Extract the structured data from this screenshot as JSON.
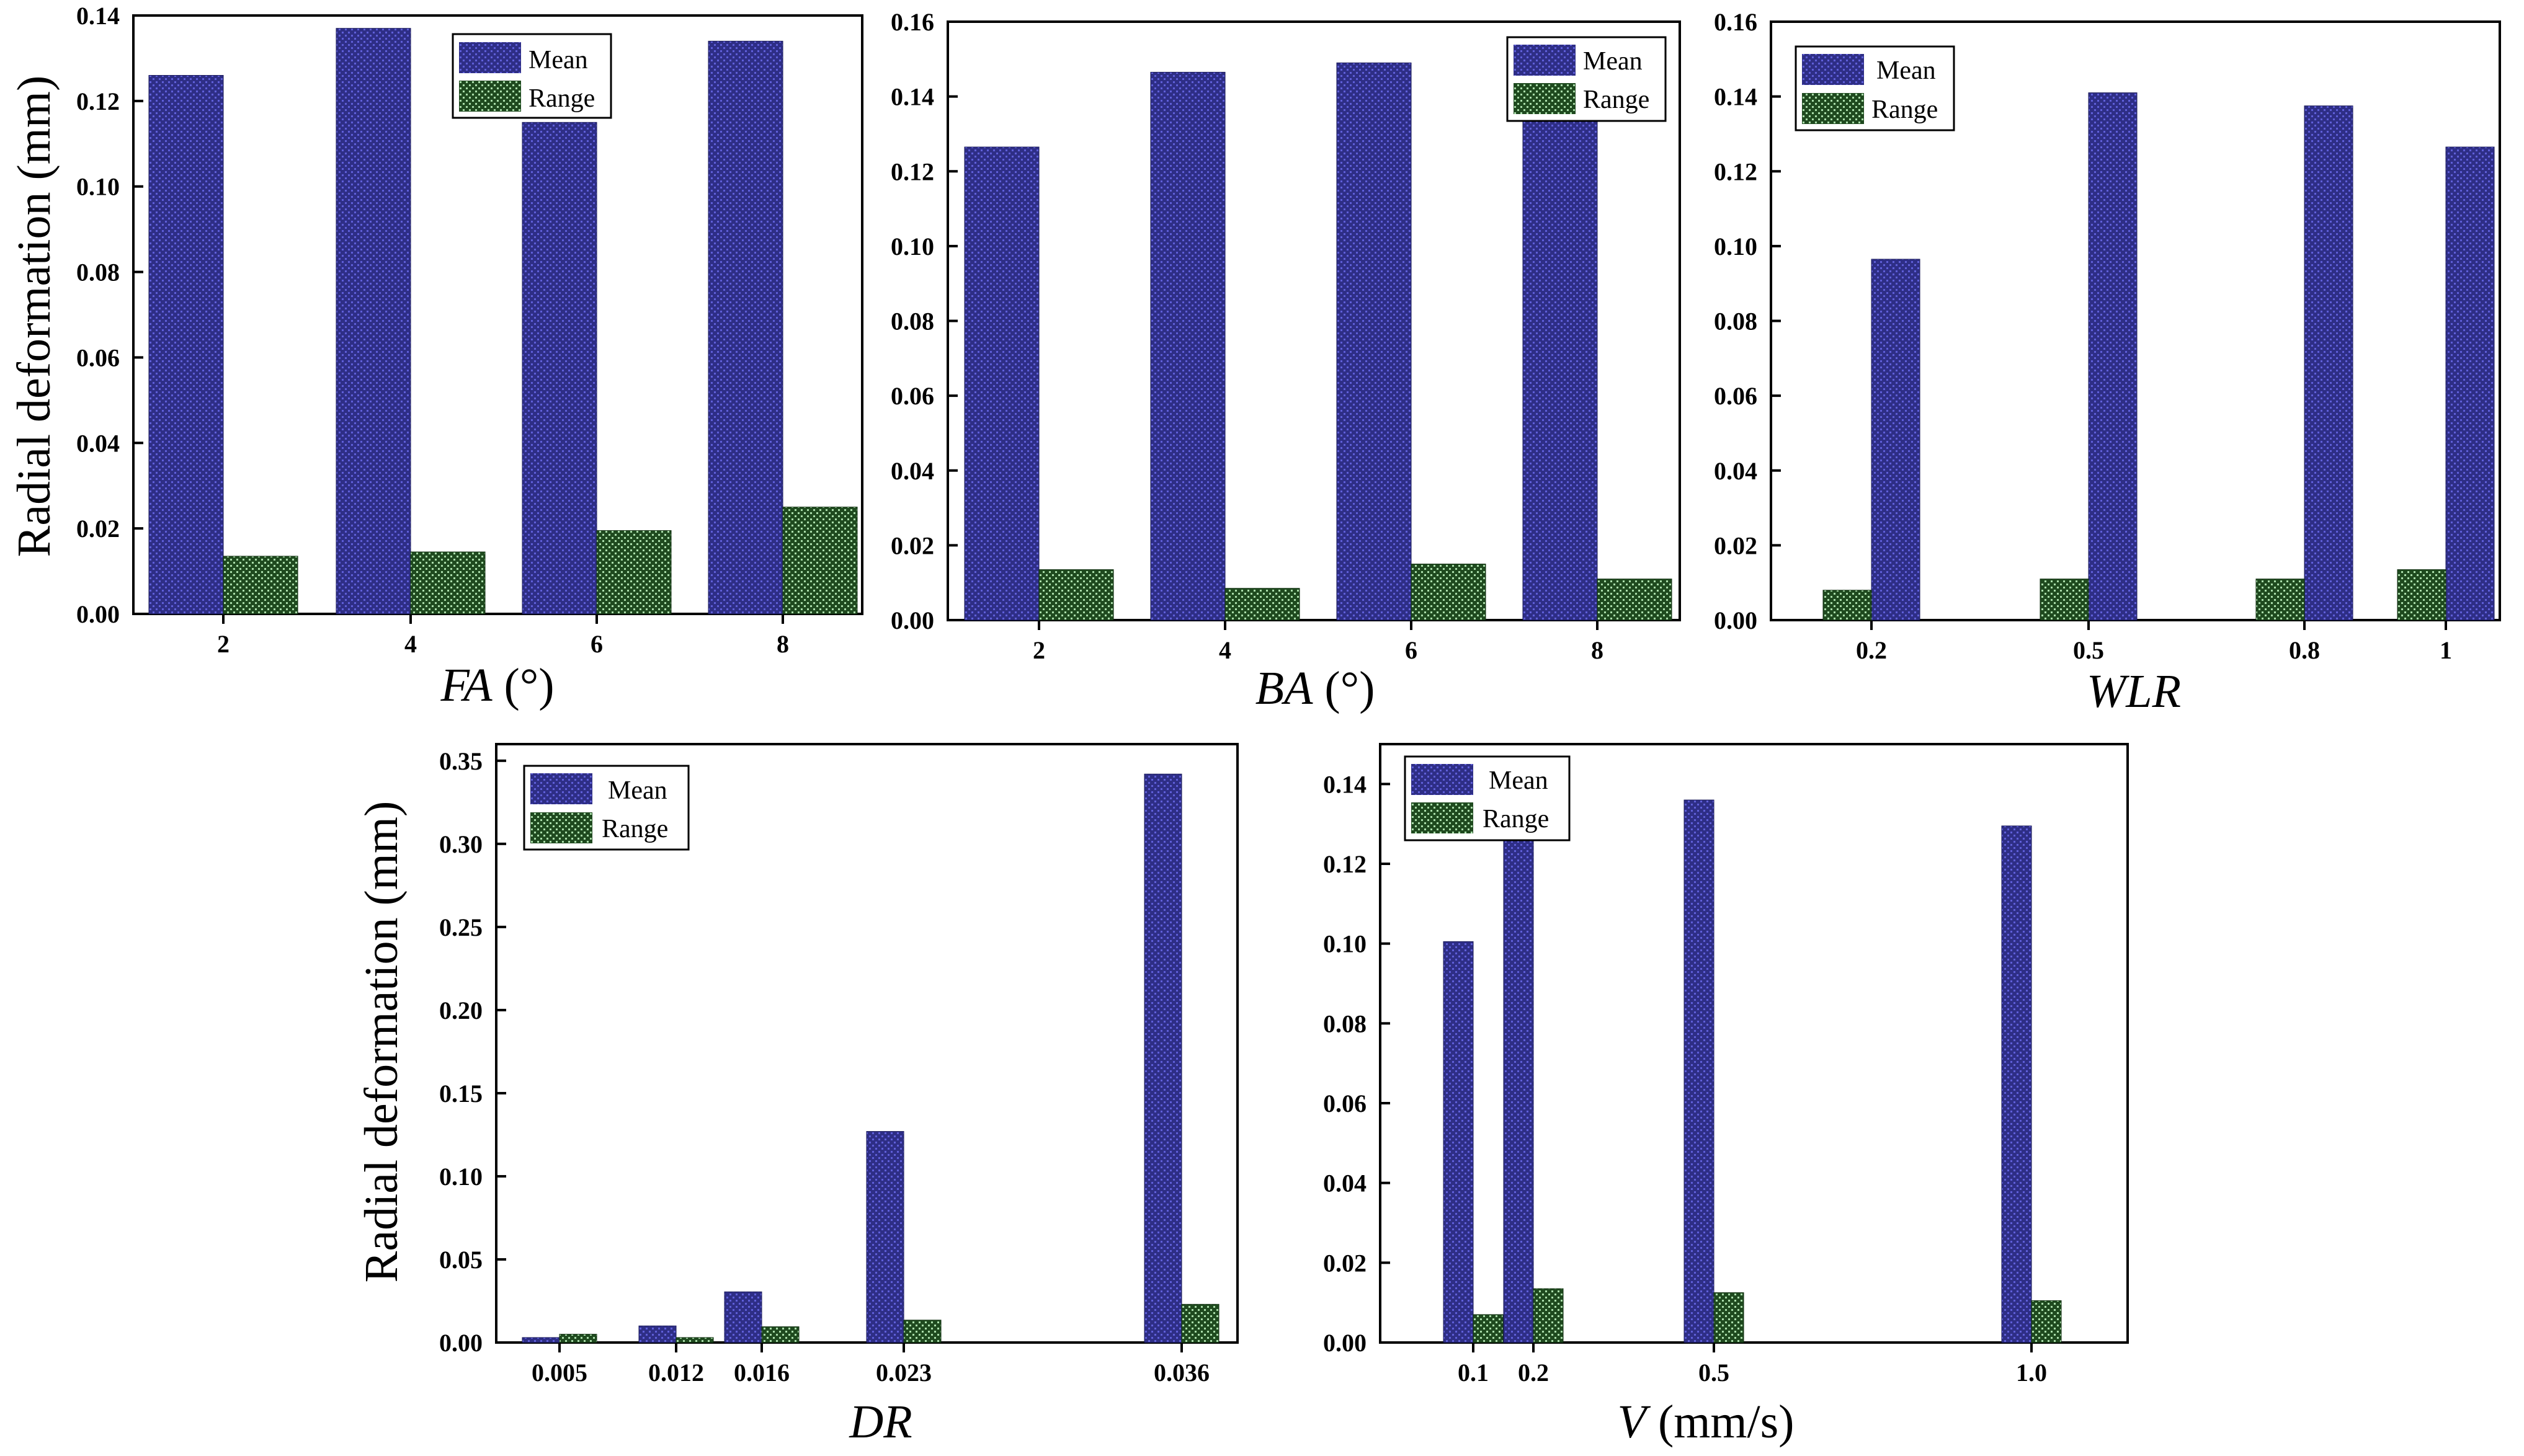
{
  "colors": {
    "mean_fill": "#2e2e86",
    "mean_dot": "#5f5fd8",
    "range_fill": "#1f4a1f",
    "range_dot": "#a9dca9"
  },
  "chart_data": [
    {
      "id": "fa",
      "type": "bar",
      "categories": [
        "2",
        "4",
        "6",
        "8"
      ],
      "series": [
        {
          "name": "Mean",
          "values": [
            0.126,
            0.137,
            0.115,
            0.134
          ]
        },
        {
          "name": "Range",
          "values": [
            0.0135,
            0.0145,
            0.0195,
            0.025
          ]
        }
      ],
      "ylim": [
        0,
        0.14
      ],
      "yticks": [
        "0.00",
        "0.02",
        "0.04",
        "0.06",
        "0.08",
        "0.10",
        "0.12",
        "0.14"
      ],
      "xlabel_italic": "FA",
      "xlabel_rest": " (°)",
      "ylabel": "Radial deformation (mm)",
      "legend": [
        "Mean",
        "Range"
      ]
    },
    {
      "id": "ba",
      "type": "bar",
      "categories": [
        "2",
        "4",
        "6",
        "8"
      ],
      "series": [
        {
          "name": "Mean",
          "values": [
            0.1265,
            0.1465,
            0.149,
            0.135
          ]
        },
        {
          "name": "Range",
          "values": [
            0.0135,
            0.0085,
            0.015,
            0.011
          ]
        }
      ],
      "ylim": [
        0,
        0.16
      ],
      "yticks": [
        "0.00",
        "0.02",
        "0.04",
        "0.06",
        "0.08",
        "0.10",
        "0.12",
        "0.14",
        "0.16"
      ],
      "xlabel_italic": "BA",
      "xlabel_rest": " (°)",
      "ylabel": "",
      "legend": [
        "Mean",
        "Range"
      ]
    },
    {
      "id": "wlr",
      "type": "bar",
      "categories": [
        "0.2",
        "0.5",
        "0.8",
        "1"
      ],
      "series": [
        {
          "name": "Mean",
          "values": [
            0.0965,
            0.141,
            0.1375,
            0.1265
          ]
        },
        {
          "name": "Range",
          "values": [
            0.008,
            0.011,
            0.011,
            0.0135
          ]
        }
      ],
      "ylim": [
        0,
        0.16
      ],
      "yticks": [
        "0.00",
        "0.02",
        "0.04",
        "0.06",
        "0.08",
        "0.10",
        "0.12",
        "0.14",
        "0.16"
      ],
      "xlabel_italic": "WLR",
      "xlabel_rest": "",
      "ylabel": "",
      "legend": [
        "Mean",
        "Range"
      ]
    },
    {
      "id": "dr",
      "type": "bar",
      "categories": [
        "0.005",
        "0.012",
        "0.016",
        "0.023",
        "0.036"
      ],
      "series": [
        {
          "name": "Mean",
          "values": [
            0.003,
            0.01,
            0.0305,
            0.127,
            0.342
          ]
        },
        {
          "name": "Range",
          "values": [
            0.005,
            0.003,
            0.0095,
            0.0135,
            0.023
          ]
        }
      ],
      "ylim": [
        0,
        0.36
      ],
      "yticks": [
        "0.00",
        "0.05",
        "0.10",
        "0.15",
        "0.20",
        "0.25",
        "0.30",
        "0.35"
      ],
      "xlabel_italic": "DR",
      "xlabel_rest": "",
      "ylabel": "Radial deformation (mm)",
      "legend": [
        "Mean",
        "Range"
      ]
    },
    {
      "id": "v",
      "type": "bar",
      "categories": [
        "0.1",
        "0.2",
        "0.5",
        "1.0"
      ],
      "series": [
        {
          "name": "Mean",
          "values": [
            0.1005,
            0.127,
            0.136,
            0.1295
          ]
        },
        {
          "name": "Range",
          "values": [
            0.007,
            0.0135,
            0.0125,
            0.0105
          ]
        }
      ],
      "ylim": [
        0,
        0.15
      ],
      "yticks": [
        "0.00",
        "0.02",
        "0.04",
        "0.06",
        "0.08",
        "0.10",
        "0.12",
        "0.14"
      ],
      "xlabel_italic": "V",
      "xlabel_rest": " (mm/s)",
      "ylabel": "",
      "legend": [
        "Mean",
        "Range"
      ]
    }
  ]
}
